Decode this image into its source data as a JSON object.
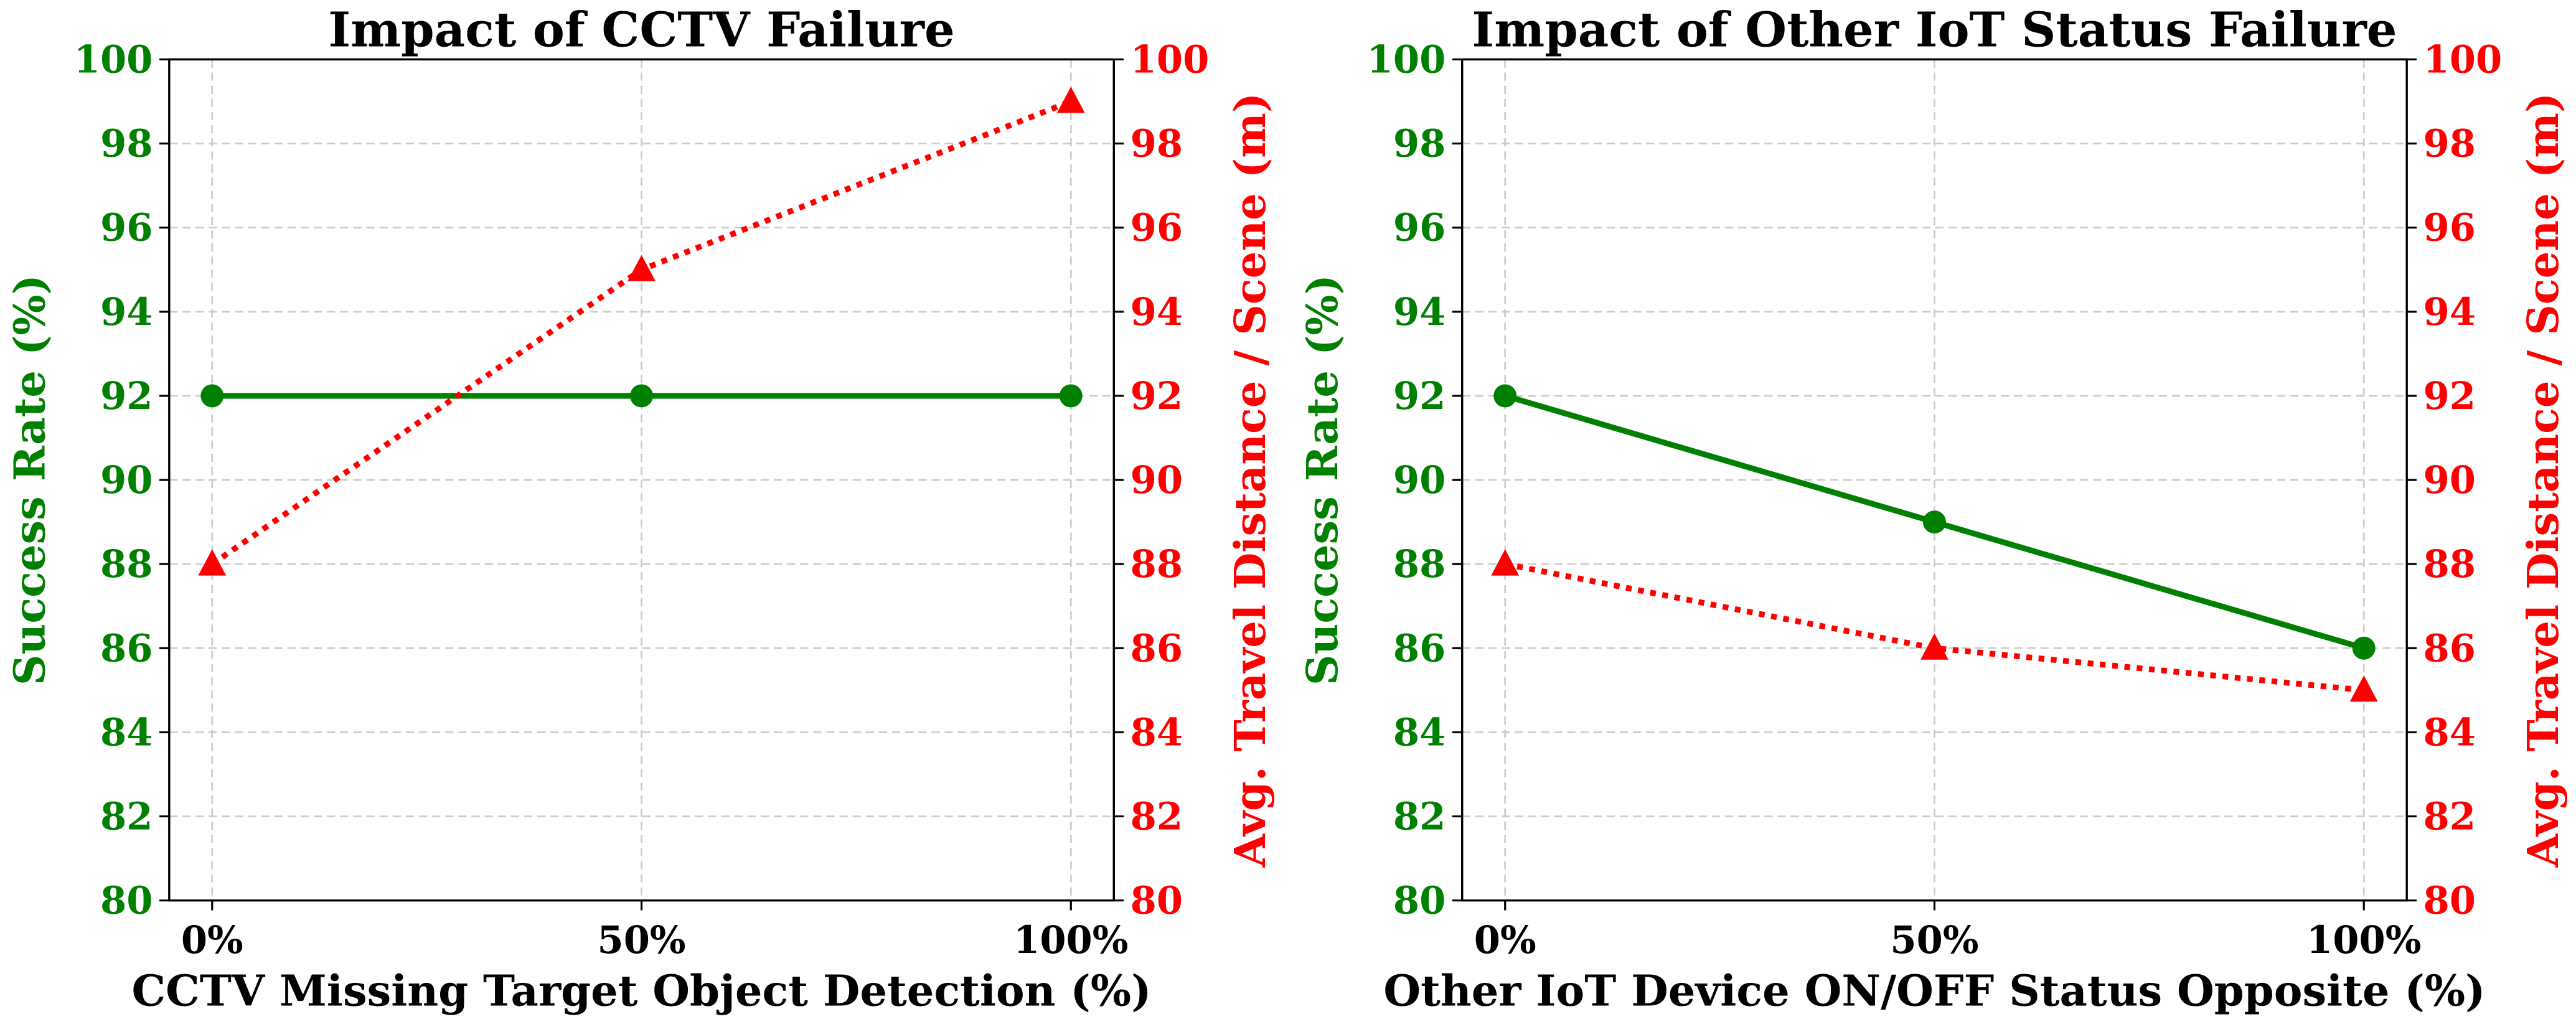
{
  "colors": {
    "success": "#008000",
    "distance": "#ff0000",
    "grid": "#cccccc"
  },
  "chart_data": [
    {
      "type": "line",
      "title": "Impact of CCTV Failure",
      "xlabel": "CCTV Missing Target Object Detection (%)",
      "ylabel": "Success Rate (%)",
      "y2label": "Avg. Travel Distance / Scene (m)",
      "categories": [
        "0%",
        "50%",
        "100%"
      ],
      "x": [
        0,
        50,
        100
      ],
      "xlim": [
        -5,
        105
      ],
      "ylim": [
        80,
        100
      ],
      "y2lim": [
        80,
        100
      ],
      "yticks": [
        "80",
        "82",
        "84",
        "86",
        "88",
        "90",
        "92",
        "94",
        "96",
        "98",
        "100"
      ],
      "grid": true,
      "series": [
        {
          "axis": "left",
          "marker": "circle",
          "style": "solid",
          "values": [
            92,
            92,
            92
          ]
        },
        {
          "axis": "right",
          "marker": "triangle",
          "style": "dotted",
          "values": [
            88,
            95,
            99
          ]
        }
      ]
    },
    {
      "type": "line",
      "title": "Impact of Other IoT Status Failure",
      "xlabel": "Other IoT Device ON/OFF Status Opposite (%)",
      "ylabel": "Success Rate (%)",
      "y2label": "Avg. Travel Distance / Scene (m)",
      "categories": [
        "0%",
        "50%",
        "100%"
      ],
      "x": [
        0,
        50,
        100
      ],
      "xlim": [
        -5,
        105
      ],
      "ylim": [
        80,
        100
      ],
      "y2lim": [
        80,
        100
      ],
      "yticks": [
        "80",
        "82",
        "84",
        "86",
        "88",
        "90",
        "92",
        "94",
        "96",
        "98",
        "100"
      ],
      "grid": true,
      "series": [
        {
          "axis": "left",
          "marker": "circle",
          "style": "solid",
          "values": [
            92,
            89,
            86
          ]
        },
        {
          "axis": "right",
          "marker": "triangle",
          "style": "dotted",
          "values": [
            88,
            86,
            85
          ]
        }
      ]
    }
  ]
}
